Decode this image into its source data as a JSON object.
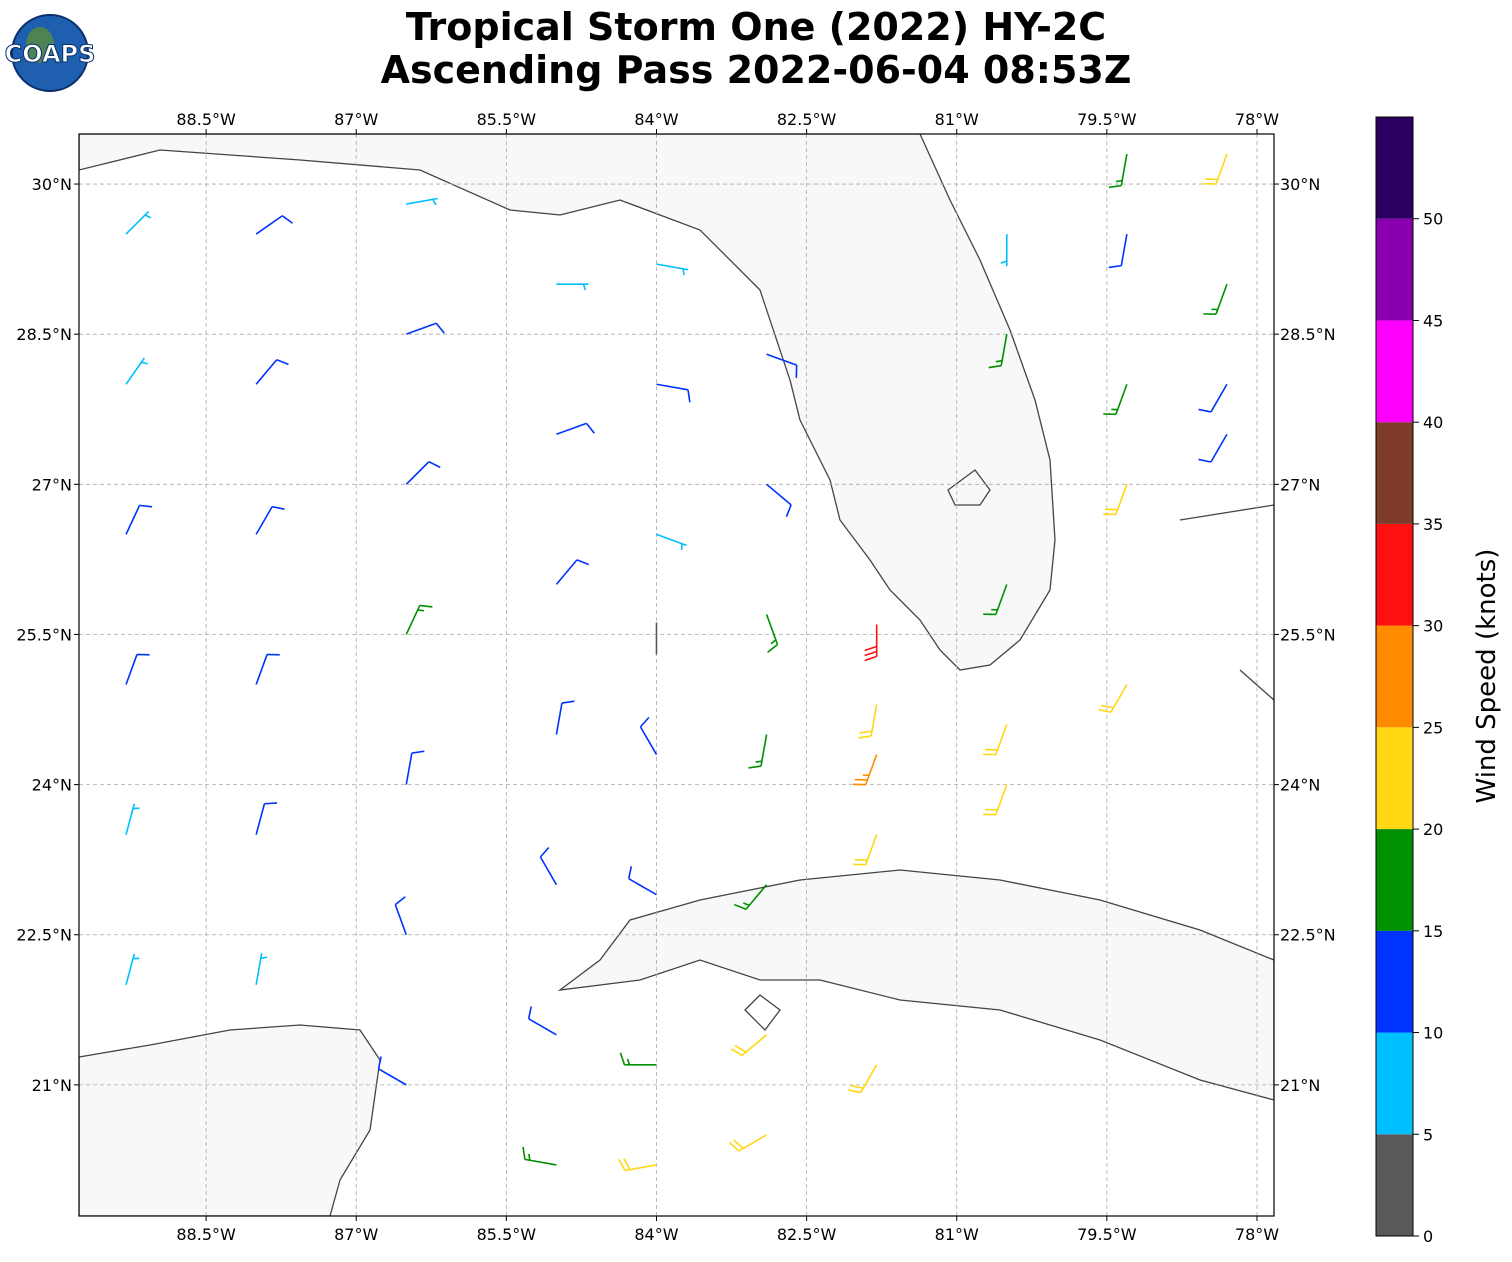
{
  "chart_data": {
    "type": "barbs",
    "logo": "COAPS",
    "title": [
      "Tropical Storm One (2022) HY-2C",
      "Ascending Pass 2022-06-04 08:53Z"
    ],
    "xlim": [
      -89.77,
      -77.83
    ],
    "ylim": [
      19.69,
      30.5
    ],
    "xticks": [
      {
        "value": -88.5,
        "label": "88.5°W"
      },
      {
        "value": -87,
        "label": "87°W"
      },
      {
        "value": -85.5,
        "label": "85.5°W"
      },
      {
        "value": -84,
        "label": "84°W"
      },
      {
        "value": -82.5,
        "label": "82.5°W"
      },
      {
        "value": -81,
        "label": "81°W"
      },
      {
        "value": -79.5,
        "label": "79.5°W"
      },
      {
        "value": -78,
        "label": "78°W"
      }
    ],
    "yticks": [
      {
        "value": 30,
        "label": "30°N"
      },
      {
        "value": 28.5,
        "label": "28.5°N"
      },
      {
        "value": 27,
        "label": "27°N"
      },
      {
        "value": 25.5,
        "label": "25.5°N"
      },
      {
        "value": 24,
        "label": "24°N"
      },
      {
        "value": 22.5,
        "label": "22.5°N"
      },
      {
        "value": 21,
        "label": "21°N"
      }
    ],
    "grid": true,
    "barbs": {
      "lon": [
        -89.3,
        -89.3,
        -89.3,
        -89.3,
        -89.3,
        -89.3,
        -88,
        -88,
        -88,
        -88,
        -88,
        -88,
        -86.5,
        -86.5,
        -86.5,
        -86.5,
        -86.5,
        -86.5,
        -86.5,
        -85,
        -85,
        -85,
        -85,
        -85,
        -85,
        -85,
        -84,
        -84,
        -84,
        -84,
        -84,
        -84,
        -84,
        -84,
        -82.9,
        -82.9,
        -82.9,
        -82.9,
        -82.9,
        -82.9,
        -82.9,
        -81.8,
        -81.8,
        -81.8,
        -81.8,
        -81.8,
        -80.5,
        -80.5,
        -80.5,
        -80.5,
        -80.5,
        -79.3,
        -79.3,
        -79.3,
        -79.3,
        -79.3,
        -78.3,
        -78.3,
        -78.3,
        -78.3
      ],
      "lat": [
        22,
        23.5,
        25,
        26.5,
        28,
        29.5,
        22,
        23.5,
        25,
        26.5,
        28,
        29.5,
        21,
        22.5,
        24,
        25.5,
        27,
        28.5,
        29.8,
        20.2,
        21.5,
        23,
        24.5,
        26,
        27.5,
        29,
        20.2,
        21.2,
        22.9,
        24.3,
        25.3,
        26.5,
        28,
        29.2,
        20.5,
        21.5,
        23,
        24.5,
        25.7,
        27,
        28.3,
        21.2,
        23.5,
        24.8,
        25.6,
        24.3,
        24,
        24.6,
        26,
        28.5,
        29.5,
        25,
        27,
        28,
        29.5,
        30.3,
        28,
        29,
        30.3,
        27.5
      ],
      "speed": [
        8,
        9,
        11,
        12,
        9,
        8,
        8,
        11,
        12,
        13,
        12,
        12,
        14,
        13,
        12,
        16,
        13,
        12,
        9,
        17,
        13,
        12,
        13,
        14,
        12,
        9,
        22,
        17,
        11,
        12,
        4,
        8,
        11,
        9,
        22,
        21,
        17,
        19,
        16,
        13,
        12,
        21,
        22,
        23,
        31,
        27,
        22,
        22,
        17,
        16,
        8,
        21,
        21,
        17,
        13,
        17,
        11,
        17,
        21,
        14
      ],
      "direction": [
        15,
        15,
        20,
        25,
        35,
        45,
        10,
        15,
        20,
        30,
        40,
        55,
        300,
        340,
        10,
        25,
        45,
        70,
        80,
        280,
        300,
        330,
        10,
        40,
        70,
        90,
        260,
        270,
        300,
        330,
        0,
        110,
        100,
        100,
        240,
        230,
        220,
        190,
        160,
        130,
        110,
        210,
        200,
        190,
        180,
        200,
        200,
        200,
        200,
        190,
        180,
        210,
        200,
        200,
        190,
        190,
        210,
        200,
        200,
        210
      ]
    },
    "colorbar": {
      "label": "Wind Speed (knots)",
      "lim": [
        0,
        55
      ],
      "ticks": [
        0,
        5,
        10,
        15,
        20,
        25,
        30,
        35,
        40,
        45,
        50
      ],
      "bounds": [
        0,
        5,
        10,
        15,
        20,
        25,
        30,
        35,
        40,
        45,
        50,
        55
      ],
      "colors": [
        "#595959",
        "#00bfff",
        "#0033ff",
        "#009000",
        "#ffd712",
        "#ff8c00",
        "#ff1010",
        "#7f3b2a",
        "#ff00ff",
        "#8a00b0",
        "#2a0060"
      ]
    }
  }
}
